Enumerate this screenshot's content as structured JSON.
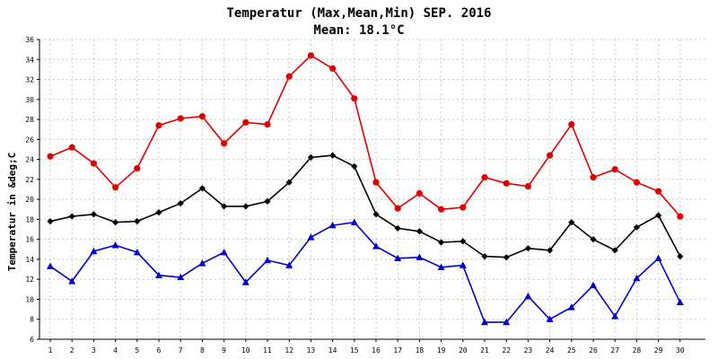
{
  "chart_data": {
    "type": "line",
    "title": "Temperatur (Max,Mean,Min) SEP. 2016",
    "subtitle": "Mean: 18.1°C",
    "ylabel": "Temperatur in &deg;C",
    "xlabel": "",
    "ylim": [
      6,
      36
    ],
    "yticks": [
      6,
      8,
      10,
      12,
      14,
      16,
      18,
      20,
      22,
      24,
      26,
      28,
      30,
      32,
      34,
      36
    ],
    "grid": true,
    "categories": [
      "1",
      "2",
      "3",
      "4",
      "5",
      "6",
      "7",
      "8",
      "9",
      "10",
      "11",
      "12",
      "13",
      "14",
      "15",
      "16",
      "17",
      "18",
      "19",
      "20",
      "21",
      "22",
      "23",
      "24",
      "25",
      "26",
      "27",
      "28",
      "29",
      "30"
    ],
    "series": [
      {
        "color": "#e00000",
        "marker": "circle",
        "values": [
          24.3,
          25.2,
          23.6,
          21.2,
          23.1,
          27.4,
          28.1,
          28.3,
          25.6,
          27.7,
          27.5,
          32.3,
          34.4,
          33.1,
          30.1,
          21.7,
          19.1,
          20.6,
          19.0,
          19.2,
          22.2,
          21.6,
          21.3,
          24.4,
          27.5,
          22.2,
          23.0,
          21.7,
          20.8,
          18.3
        ]
      },
      {
        "color": "#000000",
        "marker": "diamond",
        "values": [
          17.8,
          18.3,
          18.5,
          17.7,
          17.8,
          18.7,
          19.6,
          21.1,
          19.3,
          19.3,
          19.8,
          21.7,
          24.2,
          24.4,
          23.3,
          18.5,
          17.1,
          16.8,
          15.7,
          15.8,
          14.3,
          14.2,
          15.1,
          14.9,
          17.7,
          16.0,
          14.9,
          17.2,
          18.4,
          14.3
        ]
      },
      {
        "color": "#0000cc",
        "marker": "triangle",
        "values": [
          13.3,
          11.8,
          14.8,
          15.4,
          14.7,
          12.4,
          12.2,
          13.6,
          14.7,
          11.7,
          13.9,
          13.4,
          16.2,
          17.4,
          17.7,
          15.3,
          14.1,
          14.2,
          13.2,
          13.4,
          7.7,
          7.7,
          10.3,
          8.0,
          9.2,
          11.4,
          8.3,
          12.1,
          14.1,
          9.7
        ]
      }
    ]
  }
}
